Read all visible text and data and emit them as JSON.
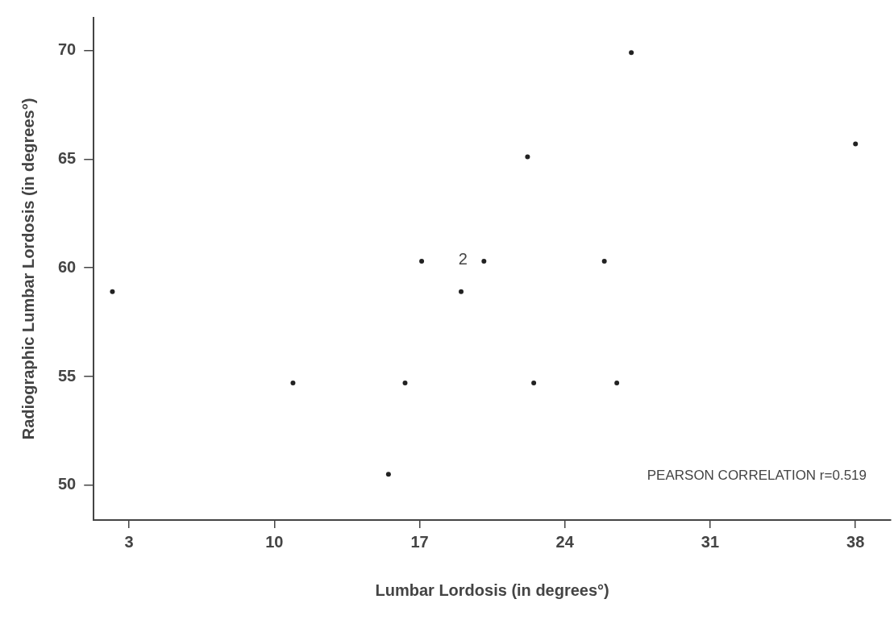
{
  "chart_data": {
    "type": "scatter",
    "xlabel": "Lumbar Lordosis (in degrees°)",
    "ylabel": "Radiographic Lumbar Lordosis (in degrees°)",
    "x": [
      2.2,
      10.9,
      15.5,
      16.3,
      17.1,
      19.0,
      20.1,
      22.2,
      22.5,
      25.9,
      26.5,
      27.2,
      38.0
    ],
    "series": [
      {
        "color": "#222222",
        "values": [
          58.9,
          54.7,
          50.5,
          54.7,
          60.3,
          58.9,
          60.3,
          65.1,
          54.7,
          60.3,
          54.7,
          69.9,
          65.7
        ]
      }
    ],
    "xlim": [
      1.3,
      39.7
    ],
    "xticks": [
      3,
      10,
      17,
      24,
      31,
      38
    ],
    "ylim": [
      48.4,
      71.5
    ],
    "yticks": [
      50,
      55,
      60,
      65,
      70
    ],
    "grid": false,
    "legend": false,
    "marker": "circle",
    "annotations": [
      {
        "text": "2",
        "x": 20.1,
        "y": 60.3
      },
      "PEARSON CORRELATION r=0.519"
    ]
  }
}
